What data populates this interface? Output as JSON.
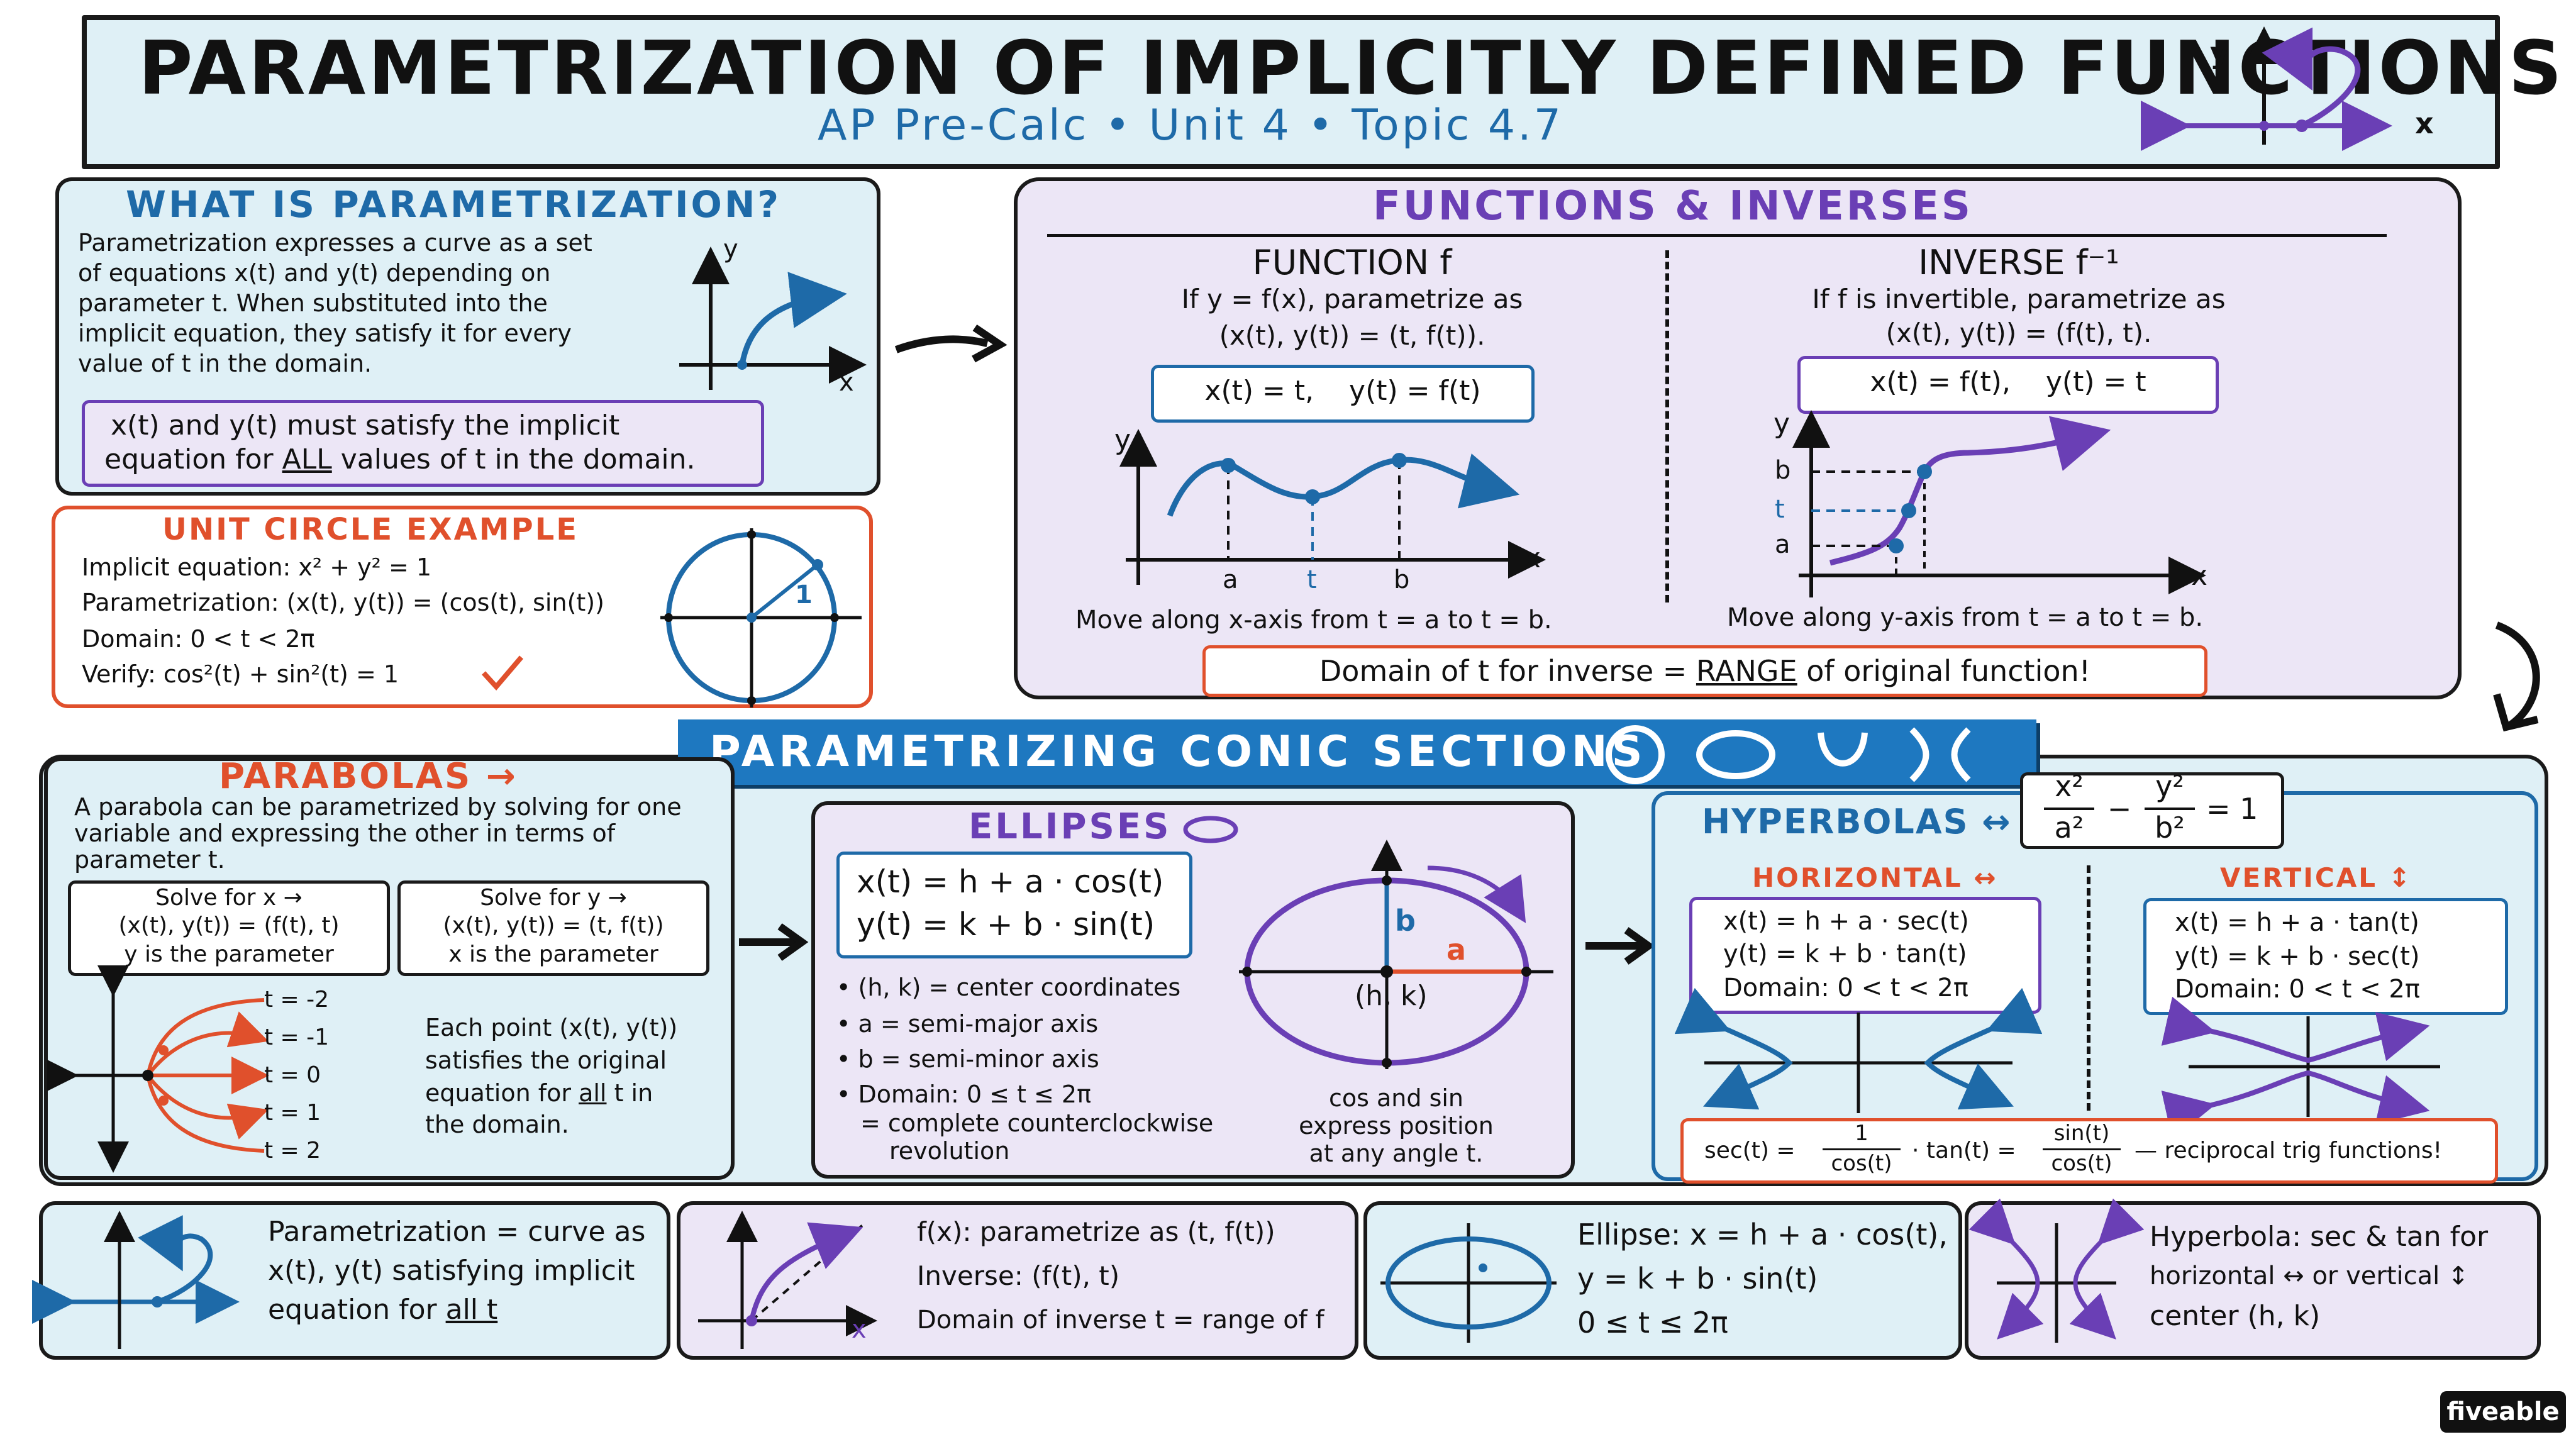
{
  "title": "PARAMETRIZATION OF IMPLICITLY DEFINED FUNCTIONS",
  "subtitle": "AP Pre-Calc • Unit 4 • Topic 4.7",
  "title_icon": {
    "y": "y",
    "x": "x"
  },
  "what": {
    "heading": "WHAT IS PARAMETRIZATION?",
    "lines": [
      "Parametrization expresses a curve as a set",
      "of equations x(t) and y(t) depending on",
      "parameter t. When substituted into the",
      "implicit equation, they satisfy it for every",
      "value of t in the domain."
    ],
    "graph_y": "y",
    "graph_x": "x",
    "note_line1": "x(t) and y(t) must satisfy the implicit",
    "note_line2_a": "equation for ",
    "note_line2_b": "ALL",
    "note_line2_c": " values of t in the domain."
  },
  "unit_circle": {
    "heading": "UNIT CIRCLE EXAMPLE",
    "implicit": "Implicit equation: x² + y² = 1",
    "param": "Parametrization: (x(t), y(t)) = (cos(t), sin(t))",
    "domain": "Domain: 0 < t < 2π",
    "verify": "Verify: cos²(t) + sin²(t) = 1",
    "radius_label": "1"
  },
  "functions": {
    "heading": "FUNCTIONS & INVERSES",
    "func_title": "FUNCTION f",
    "func_desc1": "If y = f(x), parametrize as",
    "func_desc2": "(x(t), y(t)) = (t, f(t)).",
    "func_box": "x(t) = t,    y(t) = f(t)",
    "func_axis_y": "y",
    "func_axis_x": "x",
    "func_ticks": [
      "a",
      "t",
      "b"
    ],
    "func_caption": "Move along x-axis from t = a to t = b.",
    "inv_title": "INVERSE f⁻¹",
    "inv_desc1": "If f is invertible, parametrize as",
    "inv_desc2": "(x(t), y(t)) = (f(t), t).",
    "inv_box": "x(t) = f(t),    y(t) = t",
    "inv_axis_y": "y",
    "inv_axis_x": "x",
    "inv_ticks": [
      "b",
      "t",
      "a"
    ],
    "inv_caption": "Move along y-axis from t = a to t = b.",
    "banner_a": "Domain of t for inverse = ",
    "banner_b": "RANGE",
    "banner_c": " of original function!"
  },
  "conics": {
    "heading": "PARAMETRIZING CONIC SECTIONS"
  },
  "parabolas": {
    "heading": "PARABOLAS →",
    "desc": "A parabola can be parametrized by solving for one variable and expressing the other in terms of parameter t.",
    "box1_title": "Solve for x →",
    "box1_eq": "(x(t), y(t)) = (f(t), t)",
    "box1_note": "y is the parameter",
    "box2_title": "Solve for y →",
    "box2_eq": "(x(t), y(t)) = (t, f(t))",
    "box2_note": "x is the parameter",
    "t_labels": [
      "t = -2",
      "t = -1",
      "t = 0",
      "t = 1",
      "t = 2"
    ],
    "note_a": "Each point (x(t), y(t))",
    "note_b": "satisfies the original",
    "note_c1": "equation for ",
    "note_c2": "all",
    "note_c3": " t in",
    "note_d": "the domain."
  },
  "ellipses": {
    "heading": "ELLIPSES",
    "eq1": "x(t) = h + a · cos(t)",
    "eq2": "y(t) = k + b · sin(t)",
    "bullets": [
      "(h, k) = center coordinates",
      "a = semi-major axis",
      "b = semi-minor axis",
      "Domain: 0 ≤ t ≤ 2π"
    ],
    "bullet_cont1": "= complete counterclockwise",
    "bullet_cont2": "revolution",
    "label_b": "b",
    "label_a": "a",
    "label_center": "(h, k)",
    "cap1": "cos and sin",
    "cap2": "express position",
    "cap3": "at any angle t."
  },
  "hyperbolas": {
    "heading": "HYPERBOLAS ↔",
    "eq_num1": "x²",
    "eq_den1": "a²",
    "eq_minus": "−",
    "eq_num2": "y²",
    "eq_den2": "b²",
    "eq_rhs": "= 1",
    "horiz_title": "HORIZONTAL ↔",
    "horiz_eq1": "x(t) = h + a · sec(t)",
    "horiz_eq2": "y(t) = k + b · tan(t)",
    "horiz_dom": "Domain: 0 < t < 2π",
    "vert_title": "VERTICAL ↕",
    "vert_eq1": "x(t) = h + a · tan(t)",
    "vert_eq2": "y(t) = k + b · sec(t)",
    "vert_dom": "Domain: 0 < t < 2π",
    "recip_sec": "sec(t) =",
    "recip_1": "1",
    "recip_cos": "cos(t)",
    "recip_tan": "· tan(t) =",
    "recip_sin": "sin(t)",
    "recip_cos2": "cos(t)",
    "recip_tail": "— reciprocal trig functions!"
  },
  "summary": {
    "s1_a": "Parametrization = curve as",
    "s1_b": "x(t), y(t) satisfying implicit",
    "s1_c1": "equation for ",
    "s1_c2": "all t",
    "s2_a": "f(x): parametrize as (t, f(t))",
    "s2_b": "Inverse: (f(t), t)",
    "s2_c": "Domain of inverse t = range of f",
    "s2_x": "x",
    "s3_a": "Ellipse: x = h + a · cos(t),",
    "s3_b": "y = k + b · sin(t)",
    "s3_c": "0 ≤ t ≤ 2π",
    "s4_a": "Hyperbola: sec & tan for",
    "s4_b": "horizontal ↔ or vertical ↕",
    "s4_c": "center (h, k)"
  },
  "brand": "fiveable",
  "colors": {
    "blue": "#1e6aa8",
    "purple": "#6a3fb5",
    "red": "#e0502c",
    "panel_blue": "#dff0f6",
    "panel_purple": "#ece6f6",
    "banner": "#1e78c0"
  }
}
